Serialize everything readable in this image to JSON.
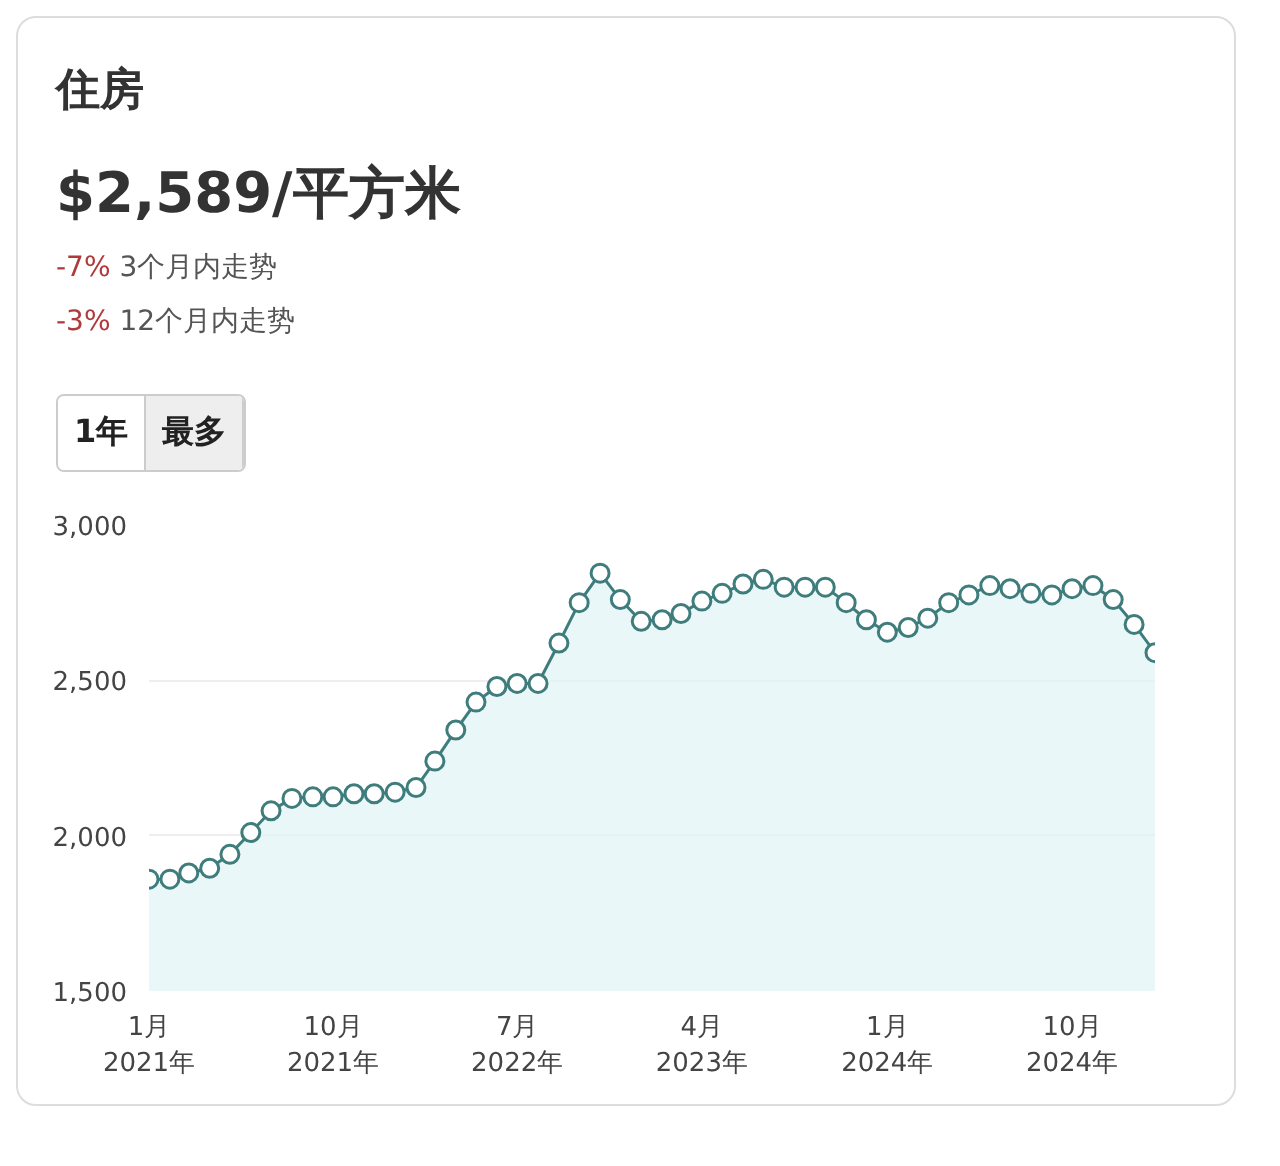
{
  "chart_data": {
    "type": "area",
    "title": "住房",
    "subtitle": "$2,589/平方米",
    "annotations": [
      "-7% 3个月内走势",
      "-3% 12个月内走势",
      "1年",
      "最多"
    ],
    "x": [
      "2021-01",
      "2021-02",
      "2021-03",
      "2021-04",
      "2021-05",
      "2021-06",
      "2021-07",
      "2021-08",
      "2021-09",
      "2021-10",
      "2021-11",
      "2021-12",
      "2022-01",
      "2022-02",
      "2022-03",
      "2022-04",
      "2022-05",
      "2022-06",
      "2022-07",
      "2022-08",
      "2022-09",
      "2022-10",
      "2022-11",
      "2022-12",
      "2023-01",
      "2023-02",
      "2023-03",
      "2023-04",
      "2023-05",
      "2023-06",
      "2023-07",
      "2023-08",
      "2023-09",
      "2023-10",
      "2023-11",
      "2023-12",
      "2024-01",
      "2024-02",
      "2024-03",
      "2024-04",
      "2024-05",
      "2024-06",
      "2024-07",
      "2024-08",
      "2024-09",
      "2024-10",
      "2024-11",
      "2024-12",
      "2025-01",
      "2025-02"
    ],
    "series": [
      {
        "color": "#3f7d7d",
        "values": [
          1860,
          1860,
          1880,
          1895,
          1940,
          2010,
          2080,
          2120,
          2125,
          2125,
          2135,
          2135,
          2140,
          2155,
          2240,
          2340,
          2430,
          2480,
          2490,
          2490,
          2620,
          2750,
          2845,
          2760,
          2690,
          2695,
          2715,
          2755,
          2780,
          2810,
          2825,
          2800,
          2800,
          2800,
          2750,
          2695,
          2655,
          2670,
          2700,
          2750,
          2775,
          2805,
          2795,
          2780,
          2775,
          2795,
          2805,
          2760,
          2680,
          2589
        ]
      }
    ],
    "marker": "circle",
    "grid": "y",
    "xlim": [
      "2021-01",
      "2025-02"
    ],
    "xticks": [
      {
        "value": "2021-01",
        "label": "1月\n2021年"
      },
      {
        "value": "2021-10",
        "label": "10月\n2021年"
      },
      {
        "value": "2022-07",
        "label": "7月\n2022年"
      },
      {
        "value": "2023-04",
        "label": "4月\n2023年"
      },
      {
        "value": "2024-01",
        "label": "1月\n2024年"
      },
      {
        "value": "2024-10",
        "label": "10月\n2024年"
      }
    ],
    "ylim": [
      1500,
      3000
    ],
    "yticks": [
      {
        "value": 1500,
        "label": "1,500"
      },
      {
        "value": 2000,
        "label": "2,000"
      },
      {
        "value": 2500,
        "label": "2,500"
      },
      {
        "value": 3000,
        "label": "3,000"
      }
    ]
  }
}
